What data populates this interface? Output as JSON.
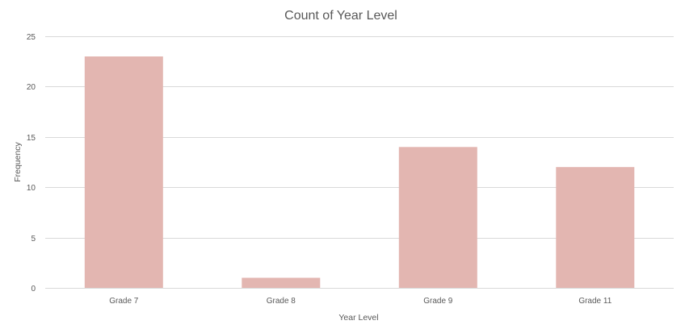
{
  "chart_data": {
    "type": "bar",
    "title": "Count of Year Level",
    "xlabel": "Year Level",
    "ylabel": "Frequency",
    "categories": [
      "Grade 7",
      "Grade 8",
      "Grade 9",
      "Grade 11"
    ],
    "values": [
      23,
      1,
      14,
      12
    ],
    "ylim": [
      0,
      25
    ],
    "yticks": [
      0,
      5,
      10,
      15,
      20,
      25
    ],
    "grid": true,
    "legend": "none",
    "bar_color": "#e3b6b1"
  }
}
